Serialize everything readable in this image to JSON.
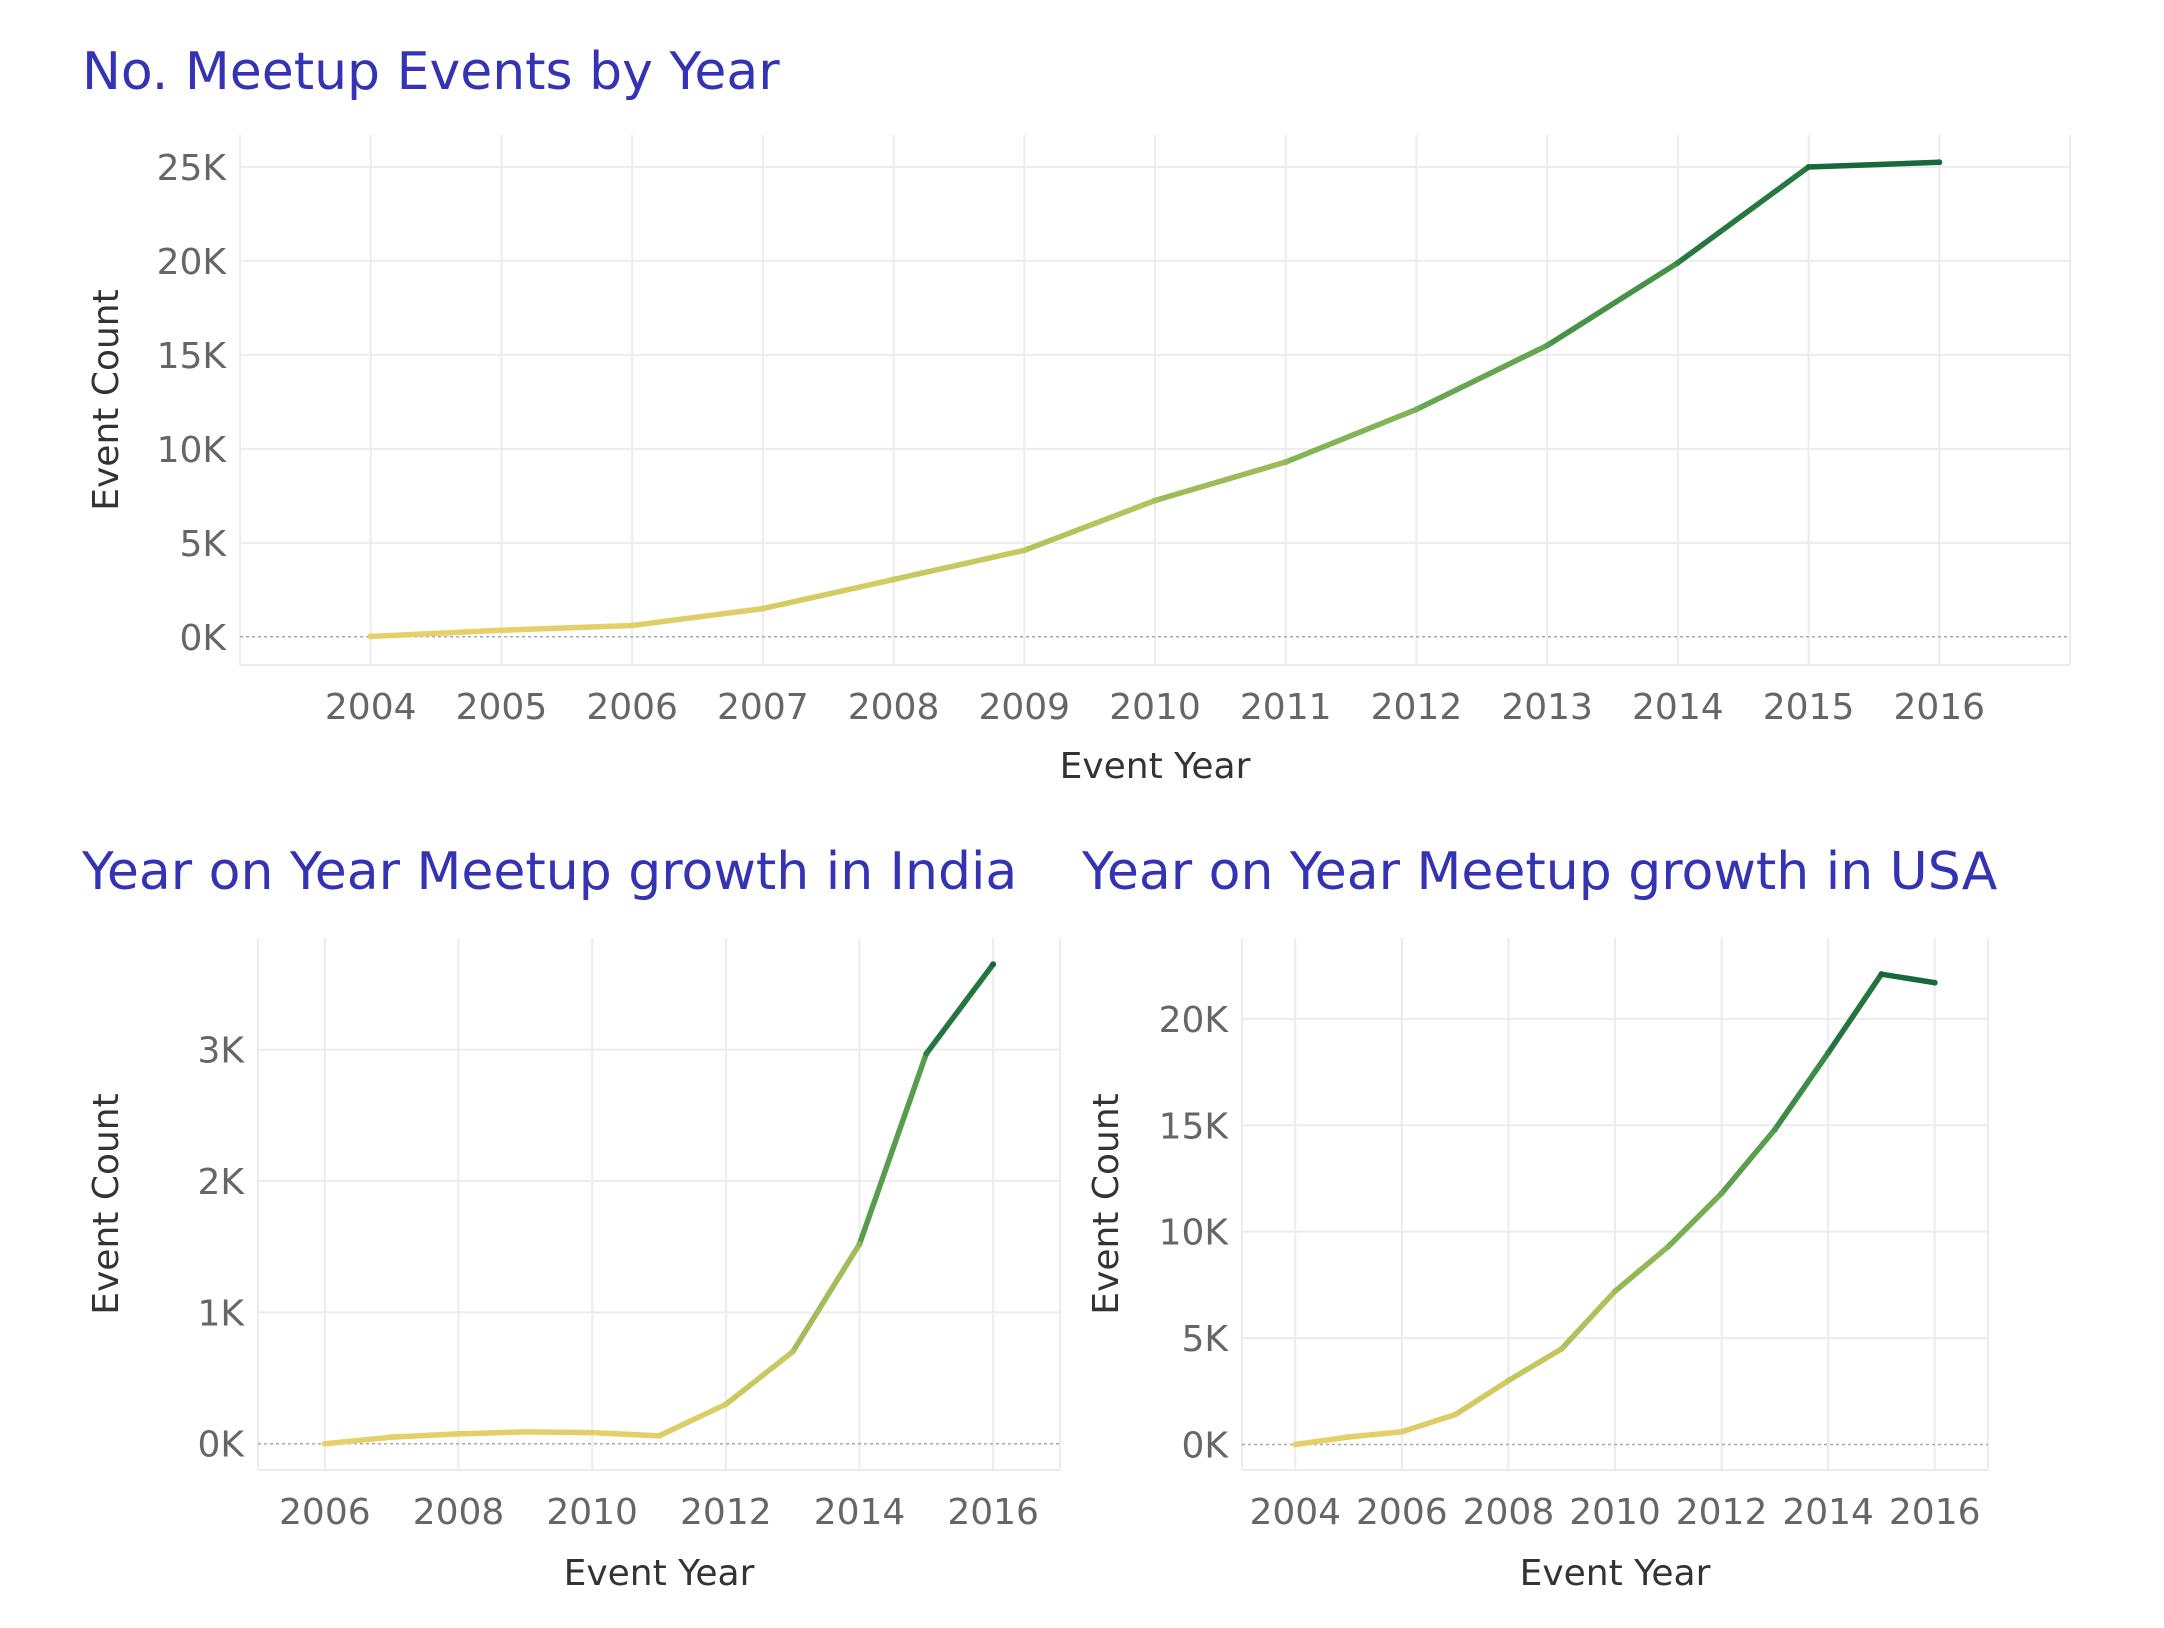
{
  "chart_data": [
    {
      "id": "overall",
      "type": "line",
      "title": "No. Meetup Events by Year",
      "xlabel": "Event Year",
      "ylabel": "Event Count",
      "x": [
        2004,
        2005,
        2006,
        2007,
        2008,
        2009,
        2010,
        2011,
        2012,
        2013,
        2014,
        2015,
        2016
      ],
      "values": [
        20,
        350,
        600,
        1500,
        3050,
        4600,
        7250,
        9300,
        12100,
        15500,
        19900,
        25000,
        25250
      ],
      "xlim": [
        2003,
        2017
      ],
      "ylim": [
        -1500,
        26700
      ],
      "xticks": [
        2004,
        2005,
        2006,
        2007,
        2008,
        2009,
        2010,
        2011,
        2012,
        2013,
        2014,
        2015,
        2016
      ],
      "xtick_labels": [
        "2004",
        "2005",
        "2006",
        "2007",
        "2008",
        "2009",
        "2010",
        "2011",
        "2012",
        "2013",
        "2014",
        "2015",
        "2016"
      ],
      "yticks": [
        0,
        5000,
        10000,
        15000,
        20000,
        25000
      ],
      "ytick_labels": [
        "0K",
        "5K",
        "10K",
        "15K",
        "20K",
        "25K"
      ],
      "grid": true,
      "color_scale": [
        "#e8d06a",
        "#b2c25c",
        "#6fac52",
        "#3d8b47",
        "#16683a"
      ]
    },
    {
      "id": "india",
      "type": "line",
      "title": "Year on Year Meetup growth in India",
      "xlabel": "Event Year",
      "ylabel": "Event Count",
      "x": [
        2006,
        2007,
        2008,
        2009,
        2010,
        2011,
        2012,
        2013,
        2014,
        2015,
        2016
      ],
      "values": [
        0,
        50,
        75,
        90,
        85,
        60,
        300,
        700,
        1520,
        2970,
        3650
      ],
      "xlim": [
        2005,
        2017
      ],
      "ylim": [
        -200,
        3850
      ],
      "xticks": [
        2006,
        2008,
        2010,
        2012,
        2014,
        2016
      ],
      "xtick_labels": [
        "2006",
        "2008",
        "2010",
        "2012",
        "2014",
        "2016"
      ],
      "yticks": [
        0,
        1000,
        2000,
        3000
      ],
      "ytick_labels": [
        "0K",
        "1K",
        "2K",
        "3K"
      ],
      "grid": true,
      "color_scale": [
        "#e8d06a",
        "#b2c25c",
        "#6fac52",
        "#3d8b47",
        "#16683a"
      ]
    },
    {
      "id": "usa",
      "type": "line",
      "title": "Year on Year Meetup growth in USA",
      "xlabel": "Event Year",
      "ylabel": "Event Count",
      "x": [
        2004,
        2005,
        2006,
        2007,
        2008,
        2009,
        2010,
        2011,
        2012,
        2013,
        2014,
        2015,
        2016
      ],
      "values": [
        0,
        350,
        600,
        1400,
        3000,
        4500,
        7200,
        9300,
        11800,
        14800,
        18400,
        22100,
        21700
      ],
      "xlim": [
        2003,
        2017
      ],
      "ylim": [
        -1200,
        23800
      ],
      "xticks": [
        2004,
        2006,
        2008,
        2010,
        2012,
        2014,
        2016
      ],
      "xtick_labels": [
        "2004",
        "2006",
        "2008",
        "2010",
        "2012",
        "2014",
        "2016"
      ],
      "yticks": [
        0,
        5000,
        10000,
        15000,
        20000
      ],
      "ytick_labels": [
        "0K",
        "5K",
        "10K",
        "15K",
        "20K"
      ],
      "grid": true,
      "color_scale": [
        "#e8d06a",
        "#b2c25c",
        "#6fac52",
        "#3d8b47",
        "#16683a"
      ]
    }
  ]
}
